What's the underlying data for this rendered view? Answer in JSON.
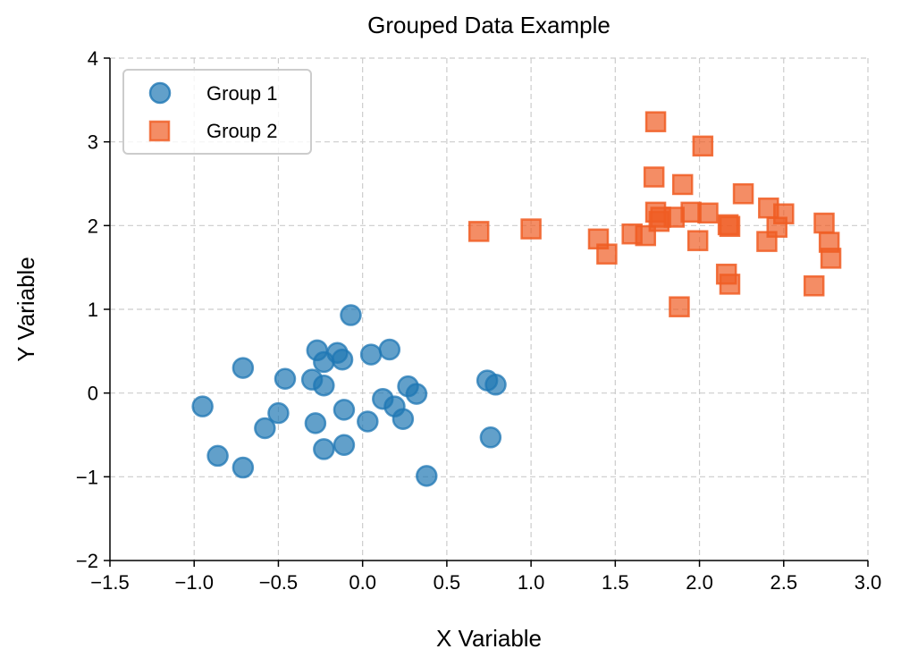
{
  "chart_data": {
    "type": "scatter",
    "title": "Grouped Data Example",
    "xlabel": "X Variable",
    "ylabel": "Y Variable",
    "xlim": [
      -1.5,
      3.0
    ],
    "ylim": [
      -2,
      4
    ],
    "xticks": [
      -1.5,
      -1.0,
      -0.5,
      0.0,
      0.5,
      1.0,
      1.5,
      2.0,
      2.5,
      3.0
    ],
    "xtick_labels": [
      "−1.5",
      "−1.0",
      "−0.5",
      "0.0",
      "0.5",
      "1.0",
      "1.5",
      "2.0",
      "2.5",
      "3.0"
    ],
    "yticks": [
      -2,
      -1,
      0,
      1,
      2,
      3,
      4
    ],
    "ytick_labels": [
      "−2",
      "−1",
      "0",
      "1",
      "2",
      "3",
      "4"
    ],
    "grid": true,
    "legend_position": "top-left",
    "series": [
      {
        "name": "Group 1",
        "marker": "circle",
        "color": "#1f77b4",
        "points": [
          [
            -0.95,
            -0.16
          ],
          [
            -0.86,
            -0.75
          ],
          [
            -0.71,
            0.3
          ],
          [
            -0.71,
            -0.89
          ],
          [
            -0.58,
            -0.42
          ],
          [
            -0.5,
            -0.24
          ],
          [
            -0.46,
            0.17
          ],
          [
            -0.3,
            0.16
          ],
          [
            -0.28,
            -0.36
          ],
          [
            -0.27,
            0.51
          ],
          [
            -0.23,
            0.37
          ],
          [
            -0.23,
            0.09
          ],
          [
            -0.23,
            -0.67
          ],
          [
            -0.15,
            0.48
          ],
          [
            -0.12,
            0.4
          ],
          [
            -0.11,
            -0.2
          ],
          [
            -0.11,
            -0.62
          ],
          [
            -0.07,
            0.93
          ],
          [
            0.03,
            -0.34
          ],
          [
            0.05,
            0.46
          ],
          [
            0.12,
            -0.07
          ],
          [
            0.16,
            0.52
          ],
          [
            0.19,
            -0.16
          ],
          [
            0.24,
            -0.31
          ],
          [
            0.27,
            0.08
          ],
          [
            0.32,
            -0.01
          ],
          [
            0.38,
            -0.99
          ],
          [
            0.74,
            0.15
          ],
          [
            0.76,
            -0.53
          ],
          [
            0.79,
            0.1
          ]
        ]
      },
      {
        "name": "Group 2",
        "marker": "square",
        "color": "#f05d23",
        "points": [
          [
            0.69,
            1.93
          ],
          [
            1.0,
            1.96
          ],
          [
            1.4,
            1.84
          ],
          [
            1.45,
            1.66
          ],
          [
            1.6,
            1.9
          ],
          [
            1.68,
            1.88
          ],
          [
            1.73,
            2.58
          ],
          [
            1.74,
            3.24
          ],
          [
            1.74,
            2.16
          ],
          [
            1.76,
            2.05
          ],
          [
            1.77,
            2.1
          ],
          [
            1.85,
            2.1
          ],
          [
            1.88,
            1.03
          ],
          [
            1.9,
            2.49
          ],
          [
            1.95,
            2.16
          ],
          [
            1.99,
            1.82
          ],
          [
            2.02,
            2.95
          ],
          [
            2.05,
            2.15
          ],
          [
            2.16,
            1.42
          ],
          [
            2.17,
            2.01
          ],
          [
            2.18,
            1.99
          ],
          [
            2.18,
            1.3
          ],
          [
            2.26,
            2.38
          ],
          [
            2.4,
            1.81
          ],
          [
            2.41,
            2.21
          ],
          [
            2.46,
            1.98
          ],
          [
            2.5,
            2.14
          ],
          [
            2.68,
            1.28
          ],
          [
            2.74,
            2.03
          ],
          [
            2.77,
            1.8
          ],
          [
            2.78,
            1.61
          ]
        ]
      }
    ]
  }
}
